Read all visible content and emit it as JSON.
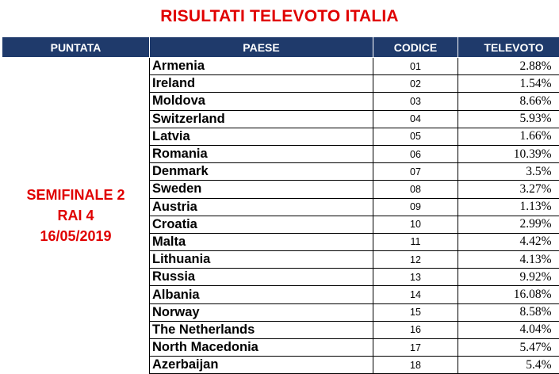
{
  "title": "RISULTATI TELEVOTO ITALIA",
  "headers": {
    "puntata": "PUNTATA",
    "paese": "PAESE",
    "codice": "CODICE",
    "televoto": "TELEVOTO"
  },
  "puntata": {
    "line1": "SEMIFINALE 2",
    "line2": "RAI 4",
    "line3": "16/05/2019"
  },
  "rows": [
    {
      "country": "Armenia",
      "code": "01",
      "televoto": "2.88%"
    },
    {
      "country": "Ireland",
      "code": "02",
      "televoto": "1.54%"
    },
    {
      "country": "Moldova",
      "code": "03",
      "televoto": "8.66%"
    },
    {
      "country": "Switzerland",
      "code": "04",
      "televoto": "5.93%"
    },
    {
      "country": "Latvia",
      "code": "05",
      "televoto": "1.66%"
    },
    {
      "country": "Romania",
      "code": "06",
      "televoto": "10.39%"
    },
    {
      "country": "Denmark",
      "code": "07",
      "televoto": "3.5%"
    },
    {
      "country": "Sweden",
      "code": "08",
      "televoto": "3.27%"
    },
    {
      "country": "Austria",
      "code": "09",
      "televoto": "1.13%"
    },
    {
      "country": "Croatia",
      "code": "10",
      "televoto": "2.99%"
    },
    {
      "country": "Malta",
      "code": "11",
      "televoto": "4.42%"
    },
    {
      "country": "Lithuania",
      "code": "12",
      "televoto": "4.13%"
    },
    {
      "country": "Russia",
      "code": "13",
      "televoto": "9.92%"
    },
    {
      "country": "Albania",
      "code": "14",
      "televoto": "16.08%"
    },
    {
      "country": "Norway",
      "code": "15",
      "televoto": "8.58%"
    },
    {
      "country": "The Netherlands",
      "code": "16",
      "televoto": "4.04%"
    },
    {
      "country": "North Macedonia",
      "code": "17",
      "televoto": "5.47%"
    },
    {
      "country": "Azerbaijan",
      "code": "18",
      "televoto": "5.4%"
    }
  ],
  "colors": {
    "title": "#e00000",
    "header_bg": "#1f3a6b",
    "header_text": "#ffffff",
    "puntata_text": "#e00000"
  }
}
